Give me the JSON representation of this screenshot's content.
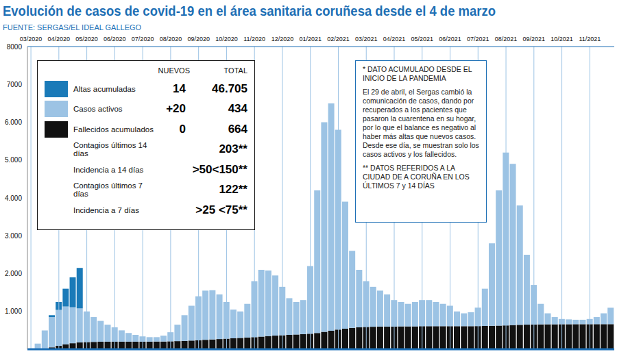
{
  "chart_data": {
    "type": "bar",
    "title": "Evolución de casos de covid-19 en el área sanitaria coruñesa desde el 4 de marzo",
    "subtitle": "FUENTE: SERGAS/EL IDEAL GALLEGO",
    "stacked": true,
    "grid": true,
    "categories": [
      "03/2020",
      null,
      null,
      null,
      "04/2020",
      null,
      null,
      null,
      "05/2020",
      null,
      null,
      null,
      "06/2020",
      null,
      null,
      null,
      "07/2020",
      null,
      null,
      null,
      "08/2020",
      null,
      null,
      null,
      "09/2020",
      null,
      null,
      null,
      "10/2020",
      null,
      null,
      null,
      "11/2020",
      null,
      null,
      null,
      "12/2020",
      null,
      null,
      null,
      "01/2021",
      null,
      null,
      null,
      "02/2021",
      null,
      null,
      null,
      "03/2021",
      null,
      null,
      null,
      "04/2021",
      null,
      null,
      null,
      "05/2021",
      null,
      null,
      null,
      "06/2021",
      null,
      null,
      null,
      "07/2021",
      null,
      null,
      null,
      "08/2021",
      null,
      null,
      null,
      "09/2021",
      null,
      null,
      null,
      "10/2021",
      null,
      null,
      null,
      "11/2021",
      null,
      null,
      null
    ],
    "series": [
      {
        "name": "Altas acumuladas",
        "color": "#1a7ab8",
        "values": [
          null,
          null,
          null,
          50,
          210,
          470,
          790,
          1070,
          null,
          null,
          null,
          null,
          null,
          null,
          null,
          null,
          null,
          null,
          null,
          null,
          null,
          null,
          null,
          null,
          null,
          null,
          null,
          null,
          null,
          null,
          null,
          null,
          null,
          null,
          null,
          null,
          null,
          null,
          null,
          null,
          null,
          null,
          null,
          null,
          null,
          null,
          null,
          null,
          null,
          null,
          null,
          null,
          null,
          null,
          null,
          null,
          null,
          null,
          null,
          null,
          null,
          null,
          null,
          null,
          null,
          null,
          null,
          null,
          null,
          null,
          null,
          null,
          null,
          null,
          null,
          null,
          null,
          null,
          null,
          null,
          null,
          null,
          null,
          null
        ]
      },
      {
        "name": "Casos activos",
        "color": "#9cc3e4",
        "values": [
          0,
          145,
          480,
          800,
          950,
          1000,
          950,
          900,
          810,
          655,
          550,
          450,
          380,
          300,
          230,
          180,
          140,
          120,
          115,
          155,
          240,
          435,
          680,
          920,
          1160,
          1300,
          1300,
          1180,
          970,
          760,
          700,
          890,
          1480,
          1765,
          1730,
          1590,
          1280,
          970,
          860,
          900,
          1790,
          3770,
          5540,
          6010,
          5280,
          3355,
          2035,
          1520,
          1210,
          1055,
          950,
          850,
          700,
          645,
          595,
          645,
          690,
          690,
          640,
          590,
          540,
          390,
          340,
          370,
          488,
          985,
          2180,
          3575,
          4570,
          4260,
          3155,
          1850,
          1045,
          542,
          290,
          190,
          138,
          128,
          117,
          117,
          137,
          186,
          286,
          434
        ]
      },
      {
        "name": "Fallecidos acumulados",
        "color": "#111111",
        "values": [
          0,
          5,
          20,
          50,
          90,
          130,
          160,
          180,
          190,
          195,
          200,
          200,
          200,
          200,
          200,
          200,
          200,
          200,
          205,
          205,
          210,
          215,
          220,
          230,
          240,
          250,
          260,
          270,
          280,
          290,
          300,
          310,
          320,
          335,
          350,
          360,
          370,
          380,
          390,
          400,
          410,
          430,
          460,
          490,
          520,
          545,
          565,
          580,
          590,
          595,
          600,
          600,
          600,
          605,
          605,
          605,
          610,
          610,
          610,
          610,
          610,
          610,
          610,
          610,
          612,
          615,
          620,
          625,
          630,
          640,
          645,
          650,
          655,
          658,
          660,
          660,
          662,
          662,
          663,
          663,
          663,
          664,
          664,
          664
        ]
      }
    ],
    "ylim": [
      0,
      8000
    ],
    "yticks": [
      {
        "value": 1000,
        "label": "1.000"
      },
      {
        "value": 2000,
        "label": "2.000"
      },
      {
        "value": 3000,
        "label": "3.000"
      },
      {
        "value": 4000,
        "label": "4.000"
      },
      {
        "value": 5000,
        "label": "5.000"
      },
      {
        "value": 6000,
        "label": "6.000"
      },
      {
        "value": 7000,
        "label": "7000"
      },
      {
        "value": 8000,
        "label": "8000"
      }
    ],
    "summary_table": {
      "columns": [
        "NUEVOS",
        "TOTAL"
      ],
      "rows": [
        {
          "label": "Altas acumuladas",
          "new": "14",
          "total": "46.705"
        },
        {
          "label": "Casos activos",
          "new": "+20",
          "total": "434"
        },
        {
          "label": "Fallecidos acumulados",
          "new": "0",
          "total": "664"
        },
        {
          "label": "Contagios últimos 14 días",
          "new": "",
          "total": "203**"
        },
        {
          "label": "Incidencia a 14 días",
          "new": "",
          "total": ">50<150**"
        },
        {
          "label": "Contagios últimos 7 días",
          "new": "",
          "total": "122**"
        },
        {
          "label": "Incidencia a 7 días",
          "new": "",
          "total": ">25 <75**"
        }
      ]
    },
    "notes": [
      "* DATO ACUMULADO DESDE EL INICIO DE LA PANDEMIA",
      "El 29 de abril, el Sergas cambió la comunicación de casos, dando por recuperados a los pacientes que pasaron la cuarentena en su hogar, por lo que el balance es negativo al haber más altas que nuevos casos. Desde ese día, se muestran solo los casos activos y los fallecidos.",
      "** DATOS REFERIDOS A LA CIUDAD DE A CORUÑA EN LOS ÚLTIMOS 7 y 14 DÍAS"
    ]
  }
}
